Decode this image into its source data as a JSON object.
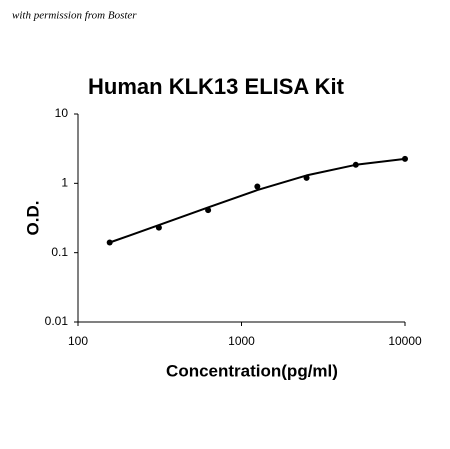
{
  "chart_data": {
    "type": "scatter",
    "annotation": "with permission from Boster",
    "title": "Human KLK13 ELISA Kit",
    "x_label": "Concentration(pg/ml)",
    "y_label": "O.D.",
    "x": [
      156.25,
      312.5,
      625,
      1250,
      2500,
      5000,
      10000
    ],
    "values": [
      0.14,
      0.23,
      0.41,
      0.9,
      1.2,
      1.85,
      2.25
    ],
    "fit_values": [
      0.14,
      0.25,
      0.45,
      0.8,
      1.3,
      1.85,
      2.25
    ],
    "color": "#000000",
    "log_x": true,
    "log_y": true,
    "xlim": [
      100,
      10000
    ],
    "xticks": [
      100,
      1000,
      10000
    ],
    "ylim": [
      0.01,
      10
    ],
    "yticks": [
      0.01,
      0.1,
      1,
      10
    ]
  }
}
